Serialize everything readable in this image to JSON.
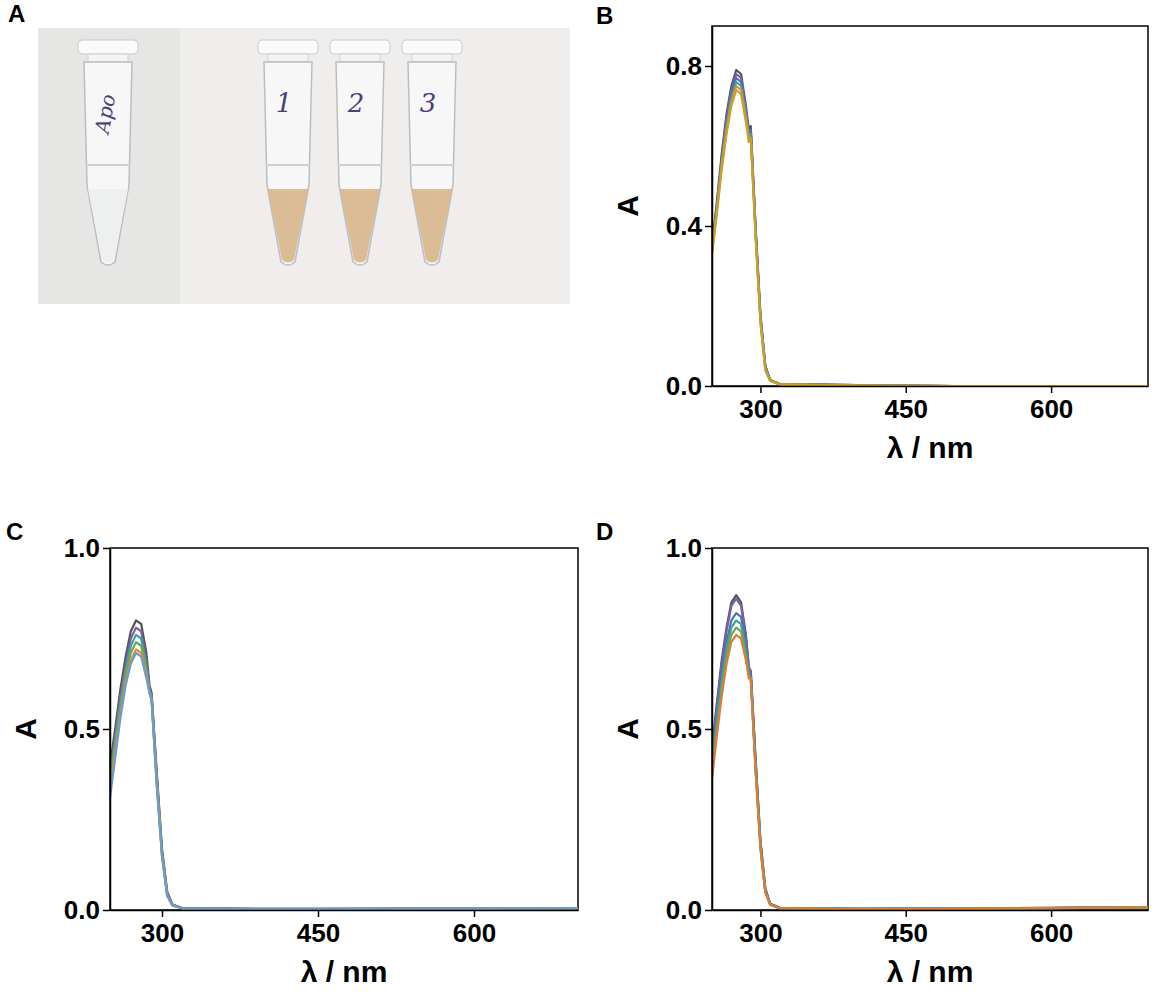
{
  "photo": {
    "panel": "A",
    "tube_labels": [
      "Apo",
      "1",
      "2",
      "3"
    ]
  },
  "chart_data": [
    {
      "panel": "B",
      "type": "line",
      "x_label": "λ / nm",
      "y_label": "A",
      "x": [
        250,
        255,
        260,
        265,
        270,
        275,
        280,
        285,
        288,
        290,
        295,
        300,
        305,
        310,
        320,
        400,
        500,
        600,
        700
      ],
      "xlim": [
        250,
        700
      ],
      "xticks": [
        300,
        450,
        600
      ],
      "ylim": [
        0,
        0.9
      ],
      "yticks": [
        {
          "value": 0,
          "label": "0.0"
        },
        0.4,
        0.8
      ],
      "series": [
        {
          "color": "#555555",
          "values": [
            0.35,
            0.46,
            0.58,
            0.68,
            0.75,
            0.79,
            0.78,
            0.7,
            0.64,
            0.65,
            0.4,
            0.18,
            0.05,
            0.015,
            0.005,
            0.002,
            0,
            0,
            0
          ]
        },
        {
          "color": "#7b5ea7",
          "values": [
            0.35,
            0.45,
            0.57,
            0.67,
            0.74,
            0.78,
            0.77,
            0.69,
            0.63,
            0.64,
            0.39,
            0.17,
            0.05,
            0.015,
            0.005,
            0.002,
            0,
            0,
            0
          ]
        },
        {
          "color": "#4c72b0",
          "values": [
            0.34,
            0.45,
            0.56,
            0.66,
            0.73,
            0.77,
            0.76,
            0.68,
            0.63,
            0.64,
            0.39,
            0.17,
            0.05,
            0.014,
            0.005,
            0.002,
            0,
            0,
            0
          ]
        },
        {
          "color": "#3ba3a3",
          "values": [
            0.34,
            0.44,
            0.56,
            0.65,
            0.72,
            0.76,
            0.75,
            0.68,
            0.62,
            0.63,
            0.38,
            0.17,
            0.05,
            0.014,
            0.004,
            0.001,
            0,
            0,
            0
          ]
        },
        {
          "color": "#e08a3c",
          "values": [
            0.33,
            0.44,
            0.55,
            0.64,
            0.71,
            0.75,
            0.74,
            0.67,
            0.62,
            0.62,
            0.38,
            0.16,
            0.04,
            0.013,
            0.004,
            0.001,
            0,
            0,
            0
          ]
        },
        {
          "color": "#c9a227",
          "values": [
            0.33,
            0.43,
            0.54,
            0.63,
            0.7,
            0.74,
            0.73,
            0.66,
            0.61,
            0.62,
            0.37,
            0.16,
            0.04,
            0.013,
            0.004,
            0.001,
            0,
            0,
            0
          ]
        }
      ]
    },
    {
      "panel": "C",
      "type": "line",
      "x_label": "λ / nm",
      "y_label": "A",
      "x": [
        250,
        255,
        260,
        265,
        270,
        275,
        280,
        285,
        288,
        290,
        295,
        300,
        305,
        310,
        320,
        400,
        500,
        600,
        700
      ],
      "xlim": [
        250,
        700
      ],
      "xticks": [
        300,
        450,
        600
      ],
      "ylim": [
        0,
        1
      ],
      "yticks": [
        {
          "value": 0,
          "label": "0.0"
        },
        0.5,
        {
          "value": 1,
          "label": "1.0"
        }
      ],
      "series": [
        {
          "color": "#555555",
          "values": [
            0.4,
            0.5,
            0.61,
            0.7,
            0.77,
            0.8,
            0.79,
            0.71,
            0.62,
            0.6,
            0.38,
            0.17,
            0.05,
            0.015,
            0.005,
            0.003,
            0.003,
            0.005,
            0.005
          ]
        },
        {
          "color": "#7b5ea7",
          "values": [
            0.38,
            0.48,
            0.59,
            0.68,
            0.75,
            0.78,
            0.77,
            0.69,
            0.61,
            0.59,
            0.37,
            0.16,
            0.05,
            0.015,
            0.005,
            0.003,
            0.003,
            0.005,
            0.005
          ]
        },
        {
          "color": "#3ba3a3",
          "values": [
            0.36,
            0.47,
            0.57,
            0.66,
            0.73,
            0.76,
            0.75,
            0.67,
            0.61,
            0.59,
            0.36,
            0.16,
            0.04,
            0.014,
            0.004,
            0.003,
            0.003,
            0.004,
            0.005
          ]
        },
        {
          "color": "#6aaa4a",
          "values": [
            0.35,
            0.45,
            0.56,
            0.65,
            0.71,
            0.74,
            0.73,
            0.66,
            0.6,
            0.58,
            0.35,
            0.15,
            0.04,
            0.013,
            0.004,
            0.002,
            0.003,
            0.004,
            0.005
          ]
        },
        {
          "color": "#e08a3c",
          "values": [
            0.33,
            0.44,
            0.54,
            0.63,
            0.69,
            0.72,
            0.71,
            0.65,
            0.6,
            0.58,
            0.35,
            0.15,
            0.04,
            0.013,
            0.004,
            0.002,
            0.003,
            0.004,
            0.005
          ]
        },
        {
          "color": "#6a9bd1",
          "values": [
            0.31,
            0.42,
            0.53,
            0.62,
            0.68,
            0.71,
            0.7,
            0.64,
            0.6,
            0.58,
            0.34,
            0.15,
            0.04,
            0.012,
            0.004,
            0.002,
            0.003,
            0.004,
            0.005
          ]
        }
      ]
    },
    {
      "panel": "D",
      "type": "line",
      "x_label": "λ / nm",
      "y_label": "A",
      "x": [
        250,
        255,
        260,
        265,
        270,
        275,
        280,
        285,
        288,
        290,
        295,
        300,
        305,
        310,
        320,
        400,
        500,
        600,
        700
      ],
      "xlim": [
        250,
        700
      ],
      "xticks": [
        300,
        450,
        600
      ],
      "ylim": [
        0,
        1
      ],
      "yticks": [
        {
          "value": 0,
          "label": "0.0"
        },
        0.5,
        {
          "value": 1,
          "label": "1.0"
        }
      ],
      "series": [
        {
          "color": "#555555",
          "values": [
            0.45,
            0.57,
            0.69,
            0.78,
            0.85,
            0.87,
            0.85,
            0.76,
            0.67,
            0.66,
            0.42,
            0.19,
            0.06,
            0.017,
            0.006,
            0.003,
            0.004,
            0.006,
            0.008
          ]
        },
        {
          "color": "#7b5ea7",
          "values": [
            0.44,
            0.56,
            0.68,
            0.77,
            0.84,
            0.86,
            0.84,
            0.75,
            0.67,
            0.66,
            0.41,
            0.19,
            0.06,
            0.017,
            0.006,
            0.003,
            0.004,
            0.006,
            0.008
          ]
        },
        {
          "color": "#4c72b0",
          "values": [
            0.42,
            0.53,
            0.65,
            0.74,
            0.8,
            0.82,
            0.81,
            0.73,
            0.66,
            0.65,
            0.4,
            0.18,
            0.05,
            0.016,
            0.005,
            0.003,
            0.004,
            0.005,
            0.007
          ]
        },
        {
          "color": "#3ba3a3",
          "values": [
            0.4,
            0.52,
            0.63,
            0.72,
            0.78,
            0.8,
            0.79,
            0.71,
            0.65,
            0.64,
            0.39,
            0.18,
            0.05,
            0.015,
            0.005,
            0.003,
            0.004,
            0.005,
            0.007
          ]
        },
        {
          "color": "#6aaa4a",
          "values": [
            0.38,
            0.5,
            0.61,
            0.7,
            0.76,
            0.78,
            0.77,
            0.7,
            0.65,
            0.64,
            0.39,
            0.17,
            0.05,
            0.015,
            0.005,
            0.002,
            0.003,
            0.005,
            0.007
          ]
        },
        {
          "color": "#e07b39",
          "values": [
            0.36,
            0.48,
            0.59,
            0.68,
            0.74,
            0.76,
            0.75,
            0.69,
            0.64,
            0.64,
            0.38,
            0.17,
            0.05,
            0.014,
            0.005,
            0.002,
            0.003,
            0.005,
            0.007
          ]
        }
      ]
    }
  ]
}
